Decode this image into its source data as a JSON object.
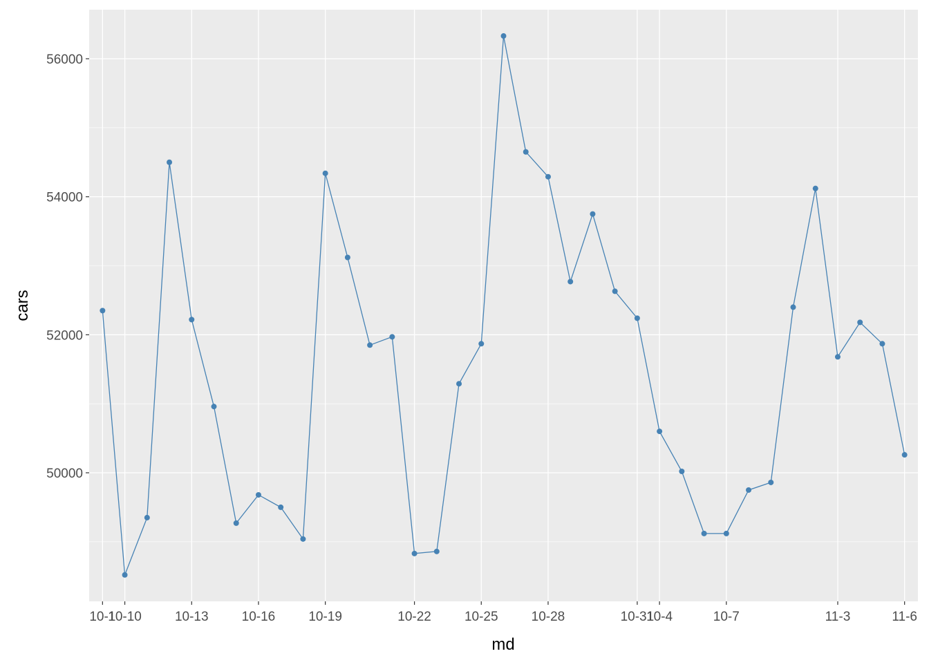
{
  "chart_data": {
    "type": "line",
    "x_label": "md",
    "y_label": "cars",
    "categories": [
      "10-1",
      "10-10",
      null,
      null,
      "10-13",
      null,
      null,
      "10-16",
      null,
      null,
      "10-19",
      null,
      null,
      null,
      "10-22",
      null,
      null,
      "10-25",
      null,
      null,
      "10-28",
      null,
      null,
      null,
      "10-31",
      "10-4",
      null,
      null,
      "10-7",
      null,
      null,
      null,
      null,
      "11-3",
      null,
      null,
      "11-6"
    ],
    "values": [
      52350,
      48520,
      49350,
      54500,
      52220,
      50960,
      49270,
      49680,
      49500,
      49040,
      54340,
      53120,
      51850,
      51970,
      48830,
      48860,
      51290,
      51870,
      56330,
      54650,
      54290,
      52770,
      53750,
      52630,
      52240,
      50600,
      50020,
      49120,
      49120,
      49750,
      49860,
      52400,
      54120,
      51680,
      52180,
      51870,
      50260
    ],
    "color": "#4682B4",
    "ylim": [
      48137,
      56711
    ],
    "yticks": [
      50000,
      52000,
      54000,
      56000
    ],
    "grid": true
  }
}
